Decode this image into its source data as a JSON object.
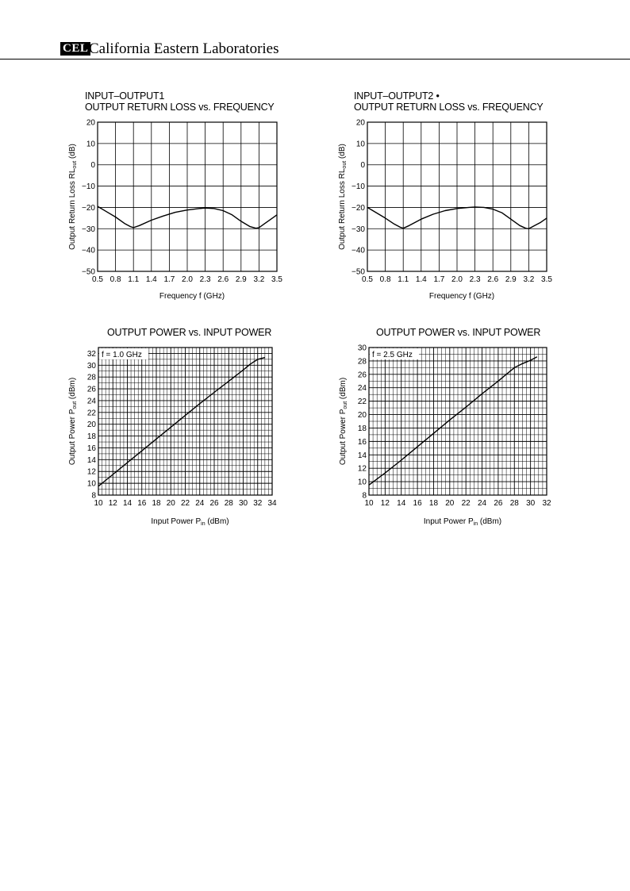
{
  "header": {
    "logo": "CEL",
    "company": "California Eastern Laboratories"
  },
  "chart_data": [
    {
      "type": "line",
      "title_line1": "INPUT–OUTPUT1",
      "title_line2": "OUTPUT RETURN LOSS vs. FREQUENCY",
      "xlabel": "Frequency  f (GHz)",
      "ylabel": "Output Return Loss  RLout (dB)",
      "x_ticks": [
        "0.5",
        "0.8",
        "1.1",
        "1.4",
        "1.7",
        "2.0",
        "2.3",
        "2.6",
        "2.9",
        "3.2",
        "3.5"
      ],
      "y_ticks": [
        "20",
        "10",
        "0",
        "−10",
        "−20",
        "−30",
        "−40",
        "−50"
      ],
      "xlim": [
        0.5,
        3.5
      ],
      "ylim": [
        -50,
        20
      ],
      "grid": true,
      "series": [
        {
          "x": [
            0.5,
            0.65,
            0.8,
            0.95,
            1.05,
            1.1,
            1.2,
            1.4,
            1.6,
            1.8,
            2.0,
            2.2,
            2.3,
            2.45,
            2.6,
            2.75,
            2.9,
            3.05,
            3.15,
            3.2,
            3.3,
            3.4,
            3.5
          ],
          "y": [
            -19.5,
            -22,
            -24.5,
            -27.5,
            -29,
            -29.5,
            -28.5,
            -26,
            -24,
            -22.3,
            -21.2,
            -20.5,
            -20.3,
            -20.5,
            -21.5,
            -23.5,
            -26.5,
            -29,
            -29.8,
            -29.5,
            -27.5,
            -25.5,
            -23.5
          ]
        }
      ]
    },
    {
      "type": "line",
      "title_line1": "INPUT–OUTPUT2  •",
      "title_line2": "OUTPUT RETURN LOSS vs. FREQUENCY",
      "xlabel": "Frequency  f (GHz)",
      "ylabel": "Output Return Loss  RLout (dB)",
      "x_ticks": [
        "0.5",
        "0.8",
        "1.1",
        "1.4",
        "1.7",
        "2.0",
        "2.3",
        "2.6",
        "2.9",
        "3.2",
        "3.5"
      ],
      "y_ticks": [
        "20",
        "10",
        "0",
        "−10",
        "−20",
        "−30",
        "−40",
        "−50"
      ],
      "xlim": [
        0.5,
        3.5
      ],
      "ylim": [
        -50,
        20
      ],
      "grid": true,
      "series": [
        {
          "x": [
            0.5,
            0.65,
            0.8,
            0.95,
            1.05,
            1.1,
            1.2,
            1.4,
            1.6,
            1.8,
            2.0,
            2.2,
            2.3,
            2.45,
            2.6,
            2.75,
            2.9,
            3.05,
            3.15,
            3.2,
            3.3,
            3.4,
            3.5
          ],
          "y": [
            -20,
            -22.5,
            -25,
            -27.8,
            -29.3,
            -29.8,
            -28.5,
            -25.5,
            -23.2,
            -21.5,
            -20.5,
            -20,
            -19.8,
            -20,
            -20.8,
            -22.5,
            -25.5,
            -28.5,
            -29.8,
            -30,
            -28.5,
            -27,
            -25
          ]
        }
      ]
    },
    {
      "type": "line",
      "title_line1": "",
      "title_line2": "OUTPUT POWER vs. INPUT POWER",
      "xlabel": "Input Power  Pin (dBm)",
      "ylabel": "Output Power  Pout (dBm)",
      "annotation": "f = 1.0 GHz",
      "x_ticks": [
        "10",
        "12",
        "14",
        "16",
        "18",
        "20",
        "22",
        "24",
        "26",
        "28",
        "30",
        "32",
        "34"
      ],
      "y_ticks": [
        "32",
        "30",
        "28",
        "26",
        "24",
        "22",
        "20",
        "18",
        "16",
        "14",
        "12",
        "10",
        "8"
      ],
      "xlim": [
        10,
        34
      ],
      "ylim": [
        8,
        33
      ],
      "grid": true,
      "series": [
        {
          "x": [
            10,
            12,
            14,
            16,
            18,
            20,
            22,
            24,
            26,
            28,
            30,
            31,
            32,
            33
          ],
          "y": [
            9.5,
            11.5,
            13.5,
            15.5,
            17.5,
            19.5,
            21.5,
            23.5,
            25.4,
            27.3,
            29.2,
            30.2,
            31,
            31.3
          ]
        }
      ]
    },
    {
      "type": "line",
      "title_line1": "",
      "title_line2": "OUTPUT POWER vs. INPUT POWER",
      "xlabel": "Input Power  Pin (dBm)",
      "ylabel": "Output Power  Pout (dBm)",
      "annotation": "f = 2.5 GHz",
      "x_ticks": [
        "10",
        "12",
        "14",
        "16",
        "18",
        "20",
        "22",
        "24",
        "26",
        "28",
        "30",
        "32"
      ],
      "y_ticks": [
        "30",
        "28",
        "26",
        "24",
        "22",
        "20",
        "18",
        "16",
        "14",
        "12",
        "10",
        "8"
      ],
      "xlim": [
        10,
        32
      ],
      "ylim": [
        8,
        30
      ],
      "grid": true,
      "series": [
        {
          "x": [
            10,
            12,
            14,
            16,
            18,
            20,
            22,
            24,
            26,
            27,
            28,
            29,
            30,
            30.8
          ],
          "y": [
            9.5,
            11.3,
            13.2,
            15.2,
            17.2,
            19.2,
            21.1,
            23.1,
            25,
            26,
            27,
            27.6,
            28.1,
            28.6
          ]
        }
      ]
    }
  ]
}
